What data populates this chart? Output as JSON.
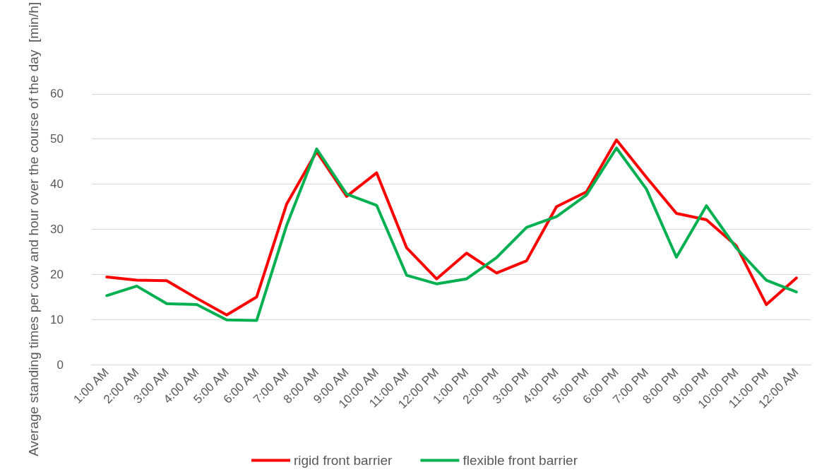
{
  "chart_data": {
    "type": "line",
    "ylabel": "Average standing times per cow and hour over the course of the day  [min/h]",
    "categories": [
      "1:00 AM",
      "2:00 AM",
      "3:00 AM",
      "4:00 AM",
      "5:00 AM",
      "6:00 AM",
      "7:00 AM",
      "8:00 AM",
      "9:00 AM",
      "10:00 AM",
      "11:00 AM",
      "12:00 PM",
      "1:00 PM",
      "2:00 PM",
      "3:00 PM",
      "4:00 PM",
      "5:00 PM",
      "6:00 PM",
      "7:00 PM",
      "8:00 PM",
      "9:00 PM",
      "10:00 PM",
      "11:00 PM",
      "12:00 AM"
    ],
    "series": [
      {
        "name": "rigid front barrier",
        "color": "#ff0000",
        "values": [
          19.4,
          18.7,
          18.6,
          14.7,
          11.0,
          15.0,
          35.6,
          47.2,
          37.3,
          42.5,
          25.9,
          19.0,
          24.7,
          20.3,
          23.0,
          35.0,
          38.3,
          49.8,
          41.5,
          33.5,
          32.1,
          26.3,
          13.3,
          19.2
        ]
      },
      {
        "name": "flexible front barrier",
        "color": "#00b050",
        "values": [
          15.3,
          17.4,
          13.5,
          13.3,
          9.9,
          9.8,
          30.9,
          47.8,
          37.8,
          35.3,
          19.8,
          17.9,
          19.0,
          23.7,
          30.4,
          32.8,
          37.6,
          48.0,
          38.9,
          23.8,
          35.2,
          25.8,
          18.7,
          16.1
        ]
      }
    ],
    "ylim": [
      0,
      60
    ],
    "yticks": [
      0,
      10,
      20,
      30,
      40,
      50,
      60
    ],
    "grid": "y",
    "legend": "bottom",
    "marker": "none",
    "line_style": "solid"
  }
}
